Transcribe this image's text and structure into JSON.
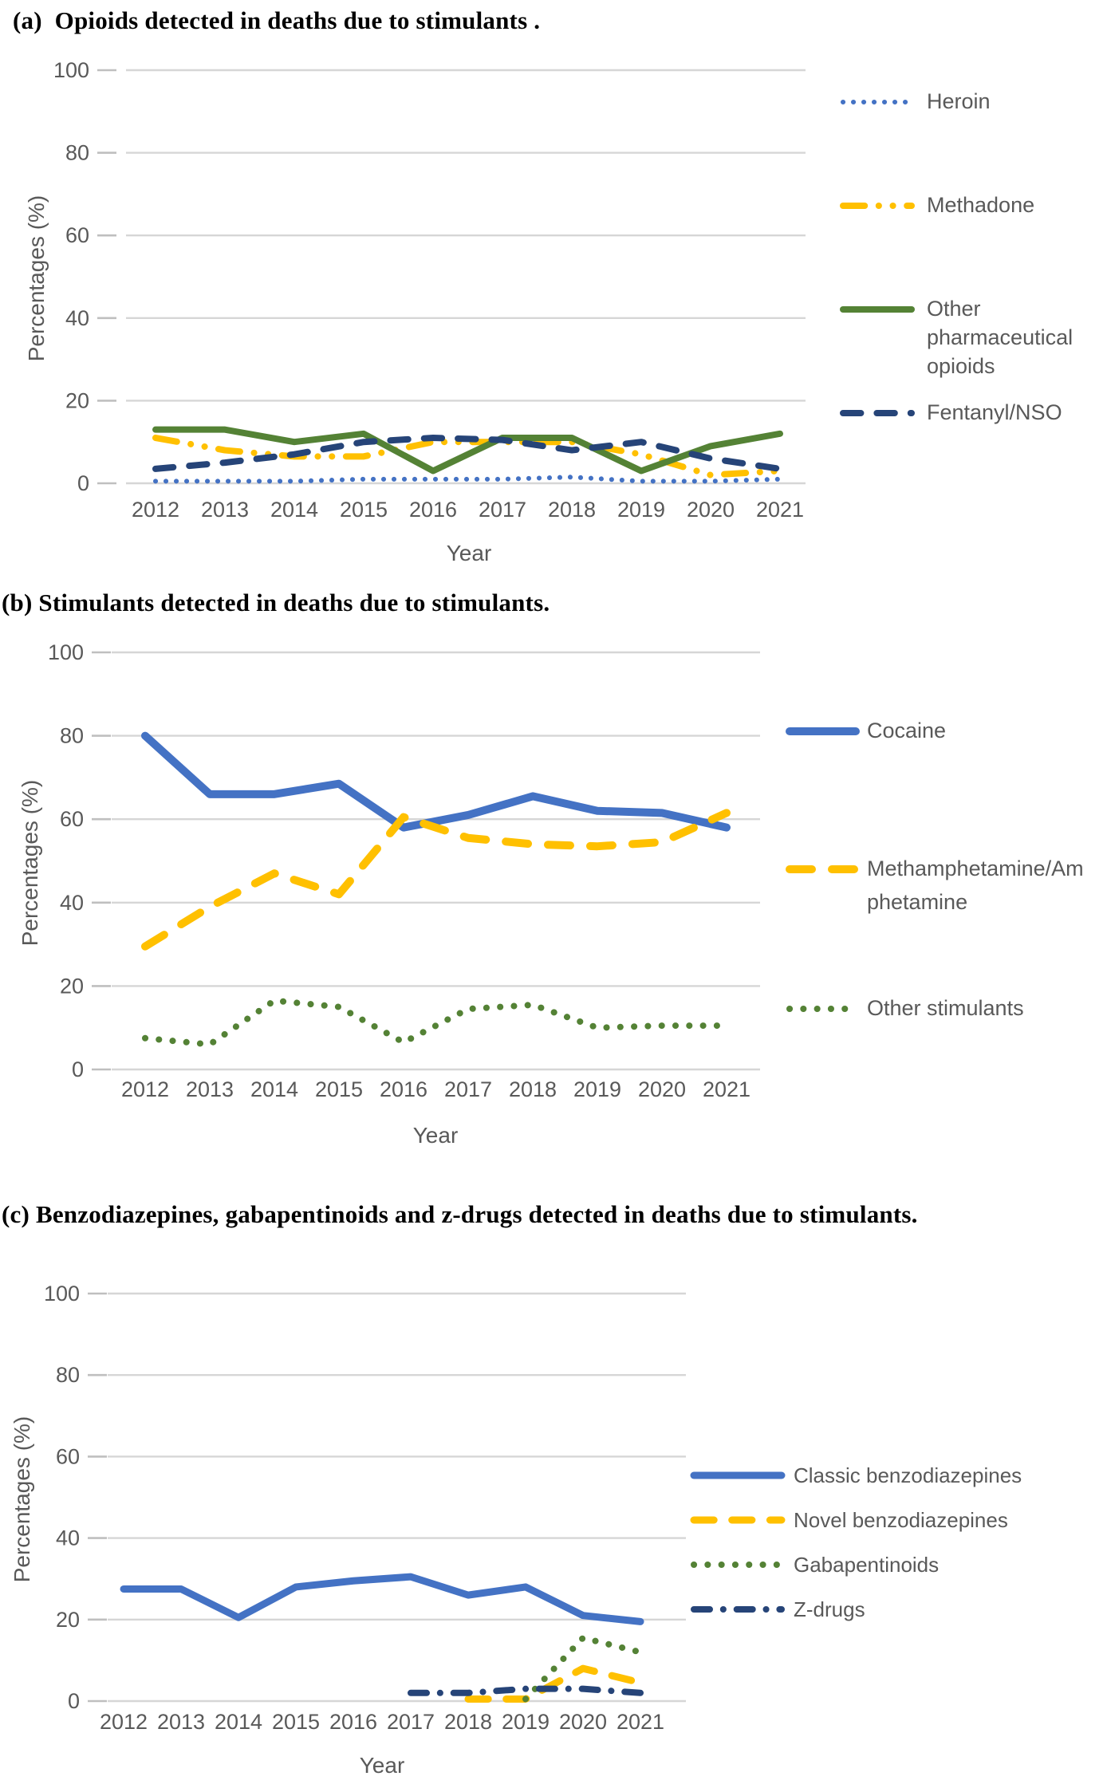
{
  "figure": {
    "panels": [
      "a",
      "b",
      "c"
    ],
    "colors": {
      "blue": "#4472C4",
      "yellow": "#FFC000",
      "green": "#548235",
      "navy": "#264478",
      "gridline": "#D6D6D6",
      "tick_stub": "#BFBFBF",
      "axis_text": "#595959",
      "title_text": "#000000"
    }
  },
  "chart_data": [
    {
      "id": "a",
      "type": "line",
      "title": "(a)  Opioids detected in deaths due to stimulants .",
      "xlabel": "Year",
      "ylabel": "Percentages (%)",
      "ylim": [
        0,
        100
      ],
      "yticks": [
        100,
        80,
        60,
        40,
        20,
        0
      ],
      "grid": true,
      "legend_position": "right",
      "categories": [
        "2012",
        "2013",
        "2014",
        "2015",
        "2016",
        "2017",
        "2018",
        "2019",
        "2020",
        "2021"
      ],
      "series": [
        {
          "name": "Heroin",
          "color": "#4472C4",
          "style": "dotted",
          "width": 6,
          "values": [
            0.5,
            0.5,
            0.5,
            1,
            1,
            1,
            1.5,
            0.5,
            0.5,
            1
          ]
        },
        {
          "name": "Methadone",
          "color": "#FFC000",
          "style": "dashdotdot",
          "width": 8,
          "values": [
            11,
            8,
            6.5,
            6.5,
            10,
            10,
            10,
            7,
            2,
            3
          ]
        },
        {
          "name": "Other pharmaceutical opioids",
          "color": "#548235",
          "style": "solid",
          "width": 8,
          "values": [
            13,
            13,
            10,
            12,
            3,
            11,
            11,
            3,
            9,
            12
          ]
        },
        {
          "name": "Fentanyl/NSO",
          "color": "#264478",
          "style": "dashed",
          "width": 8,
          "values": [
            3.5,
            5,
            7,
            10,
            11,
            10.5,
            8,
            10,
            6,
            3.5
          ]
        }
      ]
    },
    {
      "id": "b",
      "type": "line",
      "title": "(b) Stimulants detected in deaths due to stimulants.",
      "xlabel": "Year",
      "ylabel": "Percentages (%)",
      "ylim": [
        0,
        100
      ],
      "yticks": [
        100,
        80,
        60,
        40,
        20,
        0
      ],
      "grid": true,
      "legend_position": "right",
      "categories": [
        "2012",
        "2013",
        "2014",
        "2015",
        "2016",
        "2017",
        "2018",
        "2019",
        "2020",
        "2021"
      ],
      "series": [
        {
          "name": "Cocaine",
          "color": "#4472C4",
          "style": "solid",
          "width": 10,
          "values": [
            80,
            66,
            66,
            68.5,
            58,
            61,
            65.5,
            62,
            61.5,
            58
          ]
        },
        {
          "name": "Methamphetamine/Amphetamine",
          "color": "#FFC000",
          "style": "dashed",
          "width": 10,
          "values": [
            29.5,
            39,
            47,
            42,
            60.5,
            55.5,
            54,
            53.5,
            54.5,
            61.5
          ]
        },
        {
          "name": "Other stimulants",
          "color": "#548235",
          "style": "dotted",
          "width": 8,
          "values": [
            7.5,
            6,
            16.5,
            15,
            6.5,
            14.5,
            15.5,
            10,
            10.5,
            10.5
          ]
        }
      ]
    },
    {
      "id": "c",
      "type": "line",
      "title": "(c) Benzodiazepines, gabapentinoids and z-drugs detected in deaths due to stimulants.",
      "xlabel": "Year",
      "ylabel": "Percentages (%)",
      "ylim": [
        0,
        100
      ],
      "yticks": [
        100,
        80,
        60,
        40,
        20,
        0
      ],
      "grid": true,
      "legend_position": "right",
      "categories": [
        "2012",
        "2013",
        "2014",
        "2015",
        "2016",
        "2017",
        "2018",
        "2019",
        "2020",
        "2021"
      ],
      "series": [
        {
          "name": "Classic benzodiazepines",
          "color": "#4472C4",
          "style": "solid",
          "width": 9,
          "values": [
            27.5,
            27.5,
            20.5,
            28,
            29.5,
            30.5,
            26,
            28,
            21,
            19.5
          ]
        },
        {
          "name": "Novel benzodiazepines",
          "color": "#FFC000",
          "style": "dashed",
          "width": 9,
          "values": [
            null,
            null,
            null,
            null,
            null,
            null,
            0.5,
            0.5,
            8,
            4.5
          ]
        },
        {
          "name": "Gabapentinoids",
          "color": "#548235",
          "style": "dotted",
          "width": 8,
          "values": [
            null,
            null,
            null,
            null,
            null,
            null,
            null,
            0.5,
            15.5,
            12
          ]
        },
        {
          "name": "Z-drugs",
          "color": "#264478",
          "style": "dashdot",
          "width": 8,
          "values": [
            null,
            null,
            null,
            null,
            null,
            2,
            2,
            3,
            3,
            2
          ]
        }
      ]
    }
  ]
}
